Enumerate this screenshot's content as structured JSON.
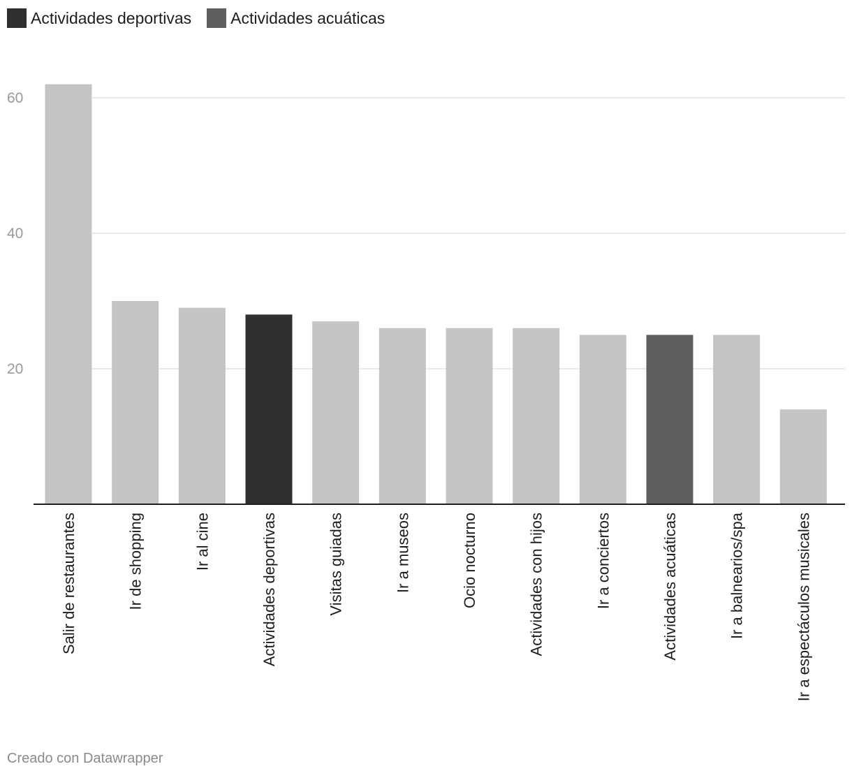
{
  "legend": {
    "items": [
      {
        "label": "Actividades deportivas",
        "color": "#2f2f2f"
      },
      {
        "label": "Actividades acuáticas",
        "color": "#5f5f5f"
      }
    ]
  },
  "footer": {
    "credit": "Creado con Datawrapper"
  },
  "chart_data": {
    "type": "bar",
    "title": "",
    "xlabel": "",
    "ylabel": "",
    "ylim": [
      0,
      60
    ],
    "yticks": [
      20,
      40,
      60
    ],
    "grid": true,
    "legend_position": "top-left",
    "default_color": "#c4c4c4",
    "categories": [
      "Salir de restaurantes",
      "Ir de shopping",
      "Ir al cine",
      "Actividades deportivas",
      "Visitas guiadas",
      "Ir a museos",
      "Ocio nocturno",
      "Actividades con hijos",
      "Ir a conciertos",
      "Actividades acuáticas",
      "Ir a balnearios/spa",
      "Ir a espectáculos musicales"
    ],
    "values": [
      62,
      30,
      29,
      28,
      27,
      26,
      26,
      26,
      25,
      25,
      25,
      14
    ],
    "highlight": {
      "Actividades deportivas": "#2f2f2f",
      "Actividades acuáticas": "#5f5f5f"
    }
  }
}
